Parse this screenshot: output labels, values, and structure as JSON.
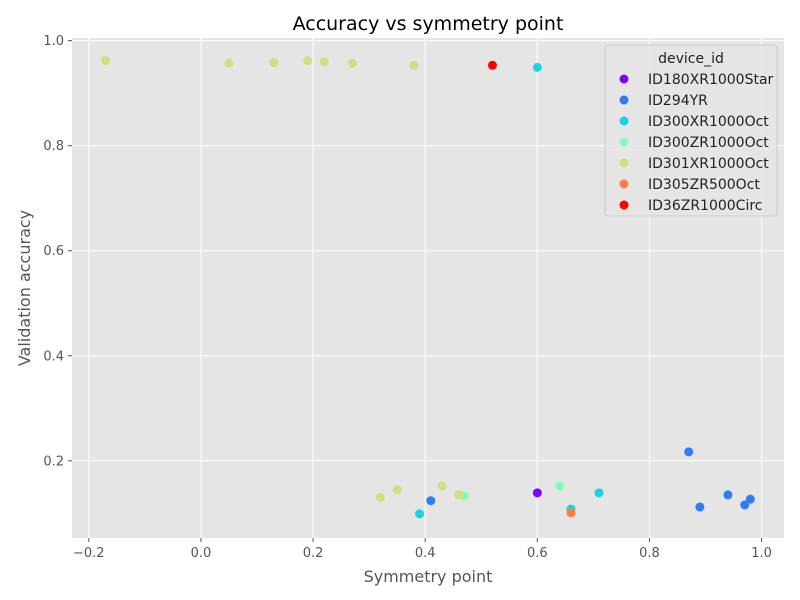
{
  "chart_data": {
    "type": "scatter",
    "title": "Accuracy vs symmetry point",
    "xlabel": "Symmetry point",
    "ylabel": "Validation accuracy",
    "xlim": [
      -0.23,
      1.04
    ],
    "ylim": [
      0.053,
      1.005
    ],
    "xticks": [
      -0.2,
      0.0,
      0.2,
      0.4,
      0.6,
      0.8,
      1.0
    ],
    "xtick_labels": [
      "−0.2",
      "0.0",
      "0.2",
      "0.4",
      "0.6",
      "0.8",
      "1.0"
    ],
    "yticks": [
      0.2,
      0.4,
      0.6,
      0.8,
      1.0
    ],
    "ytick_labels": [
      "0.2",
      "0.4",
      "0.6",
      "0.8",
      "1.0"
    ],
    "grid": true,
    "legend": {
      "title": "device_id",
      "placement": "top-right"
    },
    "series": [
      {
        "name": "ID180XR1000Star",
        "color": "#8000ff",
        "points": [
          [
            0.6,
            0.139
          ]
        ]
      },
      {
        "name": "ID294YR",
        "color": "#2c7ef7",
        "points": [
          [
            0.41,
            0.124
          ],
          [
            0.87,
            0.217
          ],
          [
            0.89,
            0.112
          ],
          [
            0.94,
            0.135
          ],
          [
            0.97,
            0.116
          ],
          [
            0.98,
            0.127
          ]
        ]
      },
      {
        "name": "ID300XR1000Oct",
        "color": "#1ed1e1",
        "points": [
          [
            0.39,
            0.099
          ],
          [
            0.6,
            0.949
          ],
          [
            0.66,
            0.108
          ],
          [
            0.71,
            0.139
          ]
        ]
      },
      {
        "name": "ID300ZR1000Oct",
        "color": "#80ffb4",
        "points": [
          [
            0.47,
            0.133
          ],
          [
            0.64,
            0.152
          ]
        ]
      },
      {
        "name": "ID301XR1000Oct",
        "color": "#d4dd80",
        "points": [
          [
            -0.17,
            0.962
          ],
          [
            0.05,
            0.957
          ],
          [
            0.13,
            0.958
          ],
          [
            0.19,
            0.962
          ],
          [
            0.22,
            0.96
          ],
          [
            0.27,
            0.957
          ],
          [
            0.38,
            0.953
          ],
          [
            0.32,
            0.13
          ],
          [
            0.35,
            0.145
          ],
          [
            0.43,
            0.152
          ],
          [
            0.46,
            0.135
          ]
        ]
      },
      {
        "name": "ID305ZR500Oct",
        "color": "#ff7e41",
        "points": [
          [
            0.66,
            0.101
          ]
        ]
      },
      {
        "name": "ID36ZR1000Circ",
        "color": "#ff0000",
        "points": [
          [
            0.52,
            0.953
          ]
        ]
      }
    ]
  }
}
